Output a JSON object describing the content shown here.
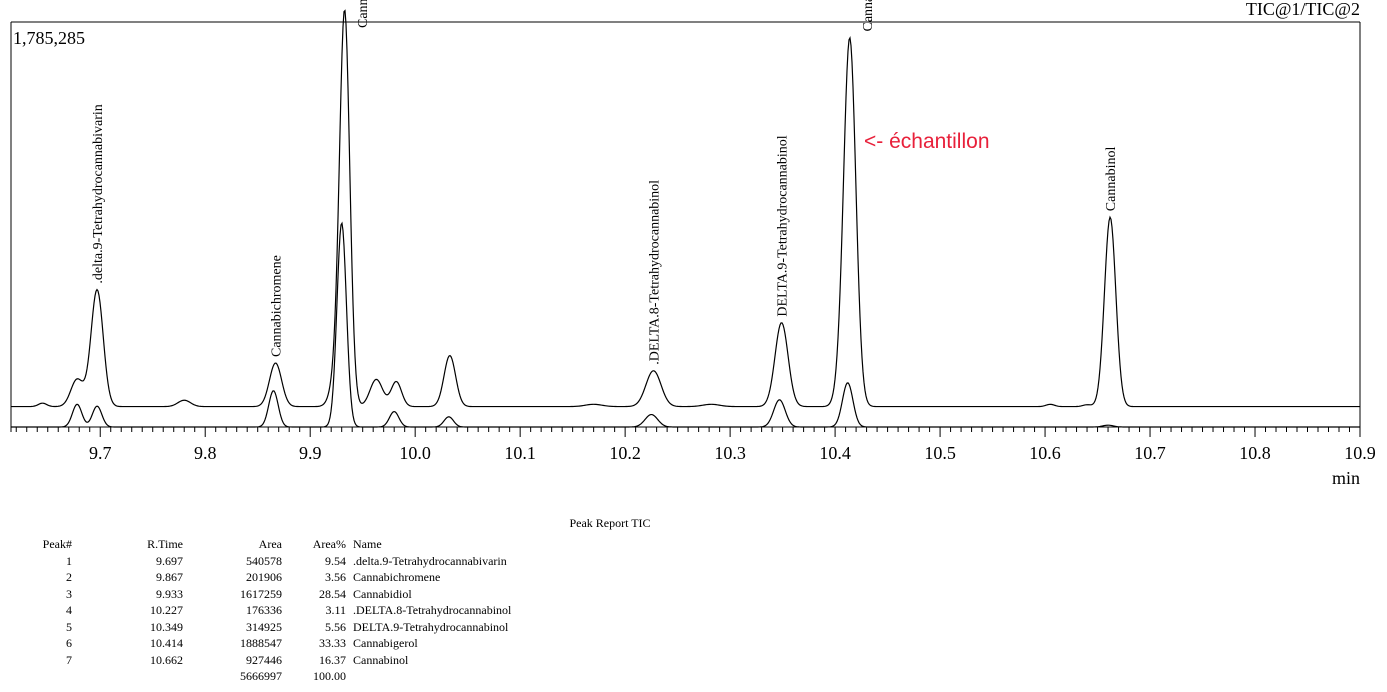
{
  "chart_data": {
    "type": "line",
    "top_right_label": "TIC@1/TIC@2",
    "ymax_label": "1,785,285",
    "xlabel": "min",
    "xlim": [
      9.615,
      10.9
    ],
    "x_ticks": [
      "9.7",
      "9.8",
      "9.9",
      "10.0",
      "10.1",
      "10.2",
      "10.3",
      "10.4",
      "10.5",
      "10.6",
      "10.7",
      "10.8",
      "10.9"
    ],
    "ylim": [
      0,
      1785285
    ],
    "annotation": "<- échantillon",
    "annotation_color": "#e8203a",
    "series": [
      {
        "name": "TIC@1",
        "baseline": 90000,
        "peaks": [
          {
            "rt": 9.645,
            "h": 15000,
            "w": 0.004
          },
          {
            "rt": 9.678,
            "h": 120000,
            "w": 0.006
          },
          {
            "rt": 9.697,
            "h": 515000,
            "w": 0.0058
          },
          {
            "rt": 9.78,
            "h": 28000,
            "w": 0.006
          },
          {
            "rt": 9.867,
            "h": 192000,
            "w": 0.0058
          },
          {
            "rt": 9.927,
            "h": 180000,
            "w": 0.006
          },
          {
            "rt": 9.933,
            "h": 1640000,
            "w": 0.0048
          },
          {
            "rt": 9.963,
            "h": 120000,
            "w": 0.006
          },
          {
            "rt": 9.982,
            "h": 110000,
            "w": 0.005
          },
          {
            "rt": 10.033,
            "h": 225000,
            "w": 0.0055
          },
          {
            "rt": 10.17,
            "h": 10000,
            "w": 0.008
          },
          {
            "rt": 10.227,
            "h": 158000,
            "w": 0.0072
          },
          {
            "rt": 10.282,
            "h": 10000,
            "w": 0.008
          },
          {
            "rt": 10.349,
            "h": 370000,
            "w": 0.0062
          },
          {
            "rt": 10.405,
            "h": 60000,
            "w": 0.005
          },
          {
            "rt": 10.414,
            "h": 1615000,
            "w": 0.0058
          },
          {
            "rt": 10.605,
            "h": 10000,
            "w": 0.004
          },
          {
            "rt": 10.64,
            "h": 8000,
            "w": 0.004
          },
          {
            "rt": 10.662,
            "h": 835000,
            "w": 0.0054
          }
        ],
        "labels": [
          {
            "text": ".delta.9-Tetrahydrocannabivarin",
            "rt": 9.697
          },
          {
            "text": "Cannabichromene",
            "rt": 9.867
          },
          {
            "text": "Cannabidiol",
            "rt": 9.933
          },
          {
            "text": ".DELTA.8-Tetrahydrocannabinol",
            "rt": 10.227
          },
          {
            "text": "DELTA.9-Tetrahydrocannabinol",
            "rt": 10.349
          },
          {
            "text": "Cannabigerol",
            "rt": 10.414
          },
          {
            "text": "Cannabinol",
            "rt": 10.662
          }
        ]
      },
      {
        "name": "TIC@2",
        "baseline": 0,
        "peaks": [
          {
            "rt": 9.678,
            "h": 100000,
            "w": 0.0045
          },
          {
            "rt": 9.697,
            "h": 92000,
            "w": 0.0045
          },
          {
            "rt": 9.865,
            "h": 160000,
            "w": 0.0045
          },
          {
            "rt": 9.93,
            "h": 900000,
            "w": 0.0045
          },
          {
            "rt": 9.98,
            "h": 68000,
            "w": 0.0045
          },
          {
            "rt": 10.032,
            "h": 45000,
            "w": 0.0045
          },
          {
            "rt": 10.225,
            "h": 55000,
            "w": 0.006
          },
          {
            "rt": 10.347,
            "h": 120000,
            "w": 0.0055
          },
          {
            "rt": 10.412,
            "h": 195000,
            "w": 0.005
          },
          {
            "rt": 10.66,
            "h": 8000,
            "w": 0.005
          }
        ]
      }
    ]
  },
  "peak_report": {
    "title": "Peak Report TIC",
    "columns": [
      "Peak#",
      "R.Time",
      "Area",
      "Area%",
      "Name"
    ],
    "rows": [
      [
        "1",
        "9.697",
        "540578",
        "9.54",
        ".delta.9-Tetrahydrocannabivarin"
      ],
      [
        "2",
        "9.867",
        "201906",
        "3.56",
        "Cannabichromene"
      ],
      [
        "3",
        "9.933",
        "1617259",
        "28.54",
        "Cannabidiol"
      ],
      [
        "4",
        "10.227",
        "176336",
        "3.11",
        ".DELTA.8-Tetrahydrocannabinol"
      ],
      [
        "5",
        "10.349",
        "314925",
        "5.56",
        "DELTA.9-Tetrahydrocannabinol"
      ],
      [
        "6",
        "10.414",
        "1888547",
        "33.33",
        "Cannabigerol"
      ],
      [
        "7",
        "10.662",
        "927446",
        "16.37",
        "Cannabinol"
      ]
    ],
    "total_area": "5666997",
    "total_pct": "100.00"
  }
}
